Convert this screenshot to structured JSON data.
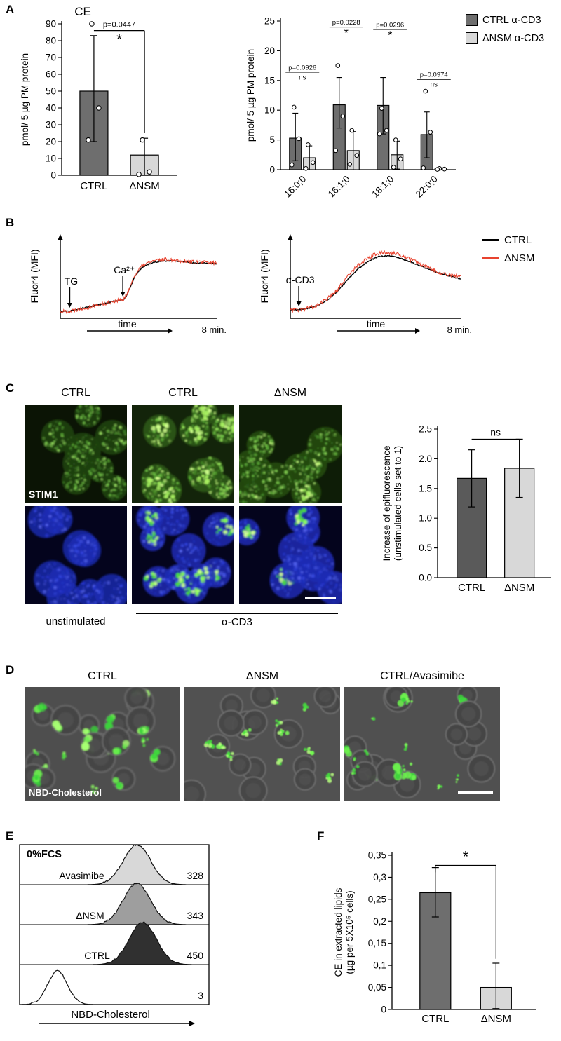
{
  "panels": {
    "A": {
      "label": "A"
    },
    "B": {
      "label": "B"
    },
    "C": {
      "label": "C",
      "col_headers": [
        "CTRL",
        "CTRL",
        "ΔNSM"
      ],
      "image_label": "STIM1",
      "group_labels": {
        "left": "unstimulated",
        "right": "α-CD3"
      }
    },
    "D": {
      "label": "D",
      "col_headers": [
        "CTRL",
        "ΔNSM",
        "CTRL/Avasimibe"
      ],
      "image_label": "NBD-Cholesterol"
    },
    "E": {
      "label": "E"
    },
    "F": {
      "label": "F"
    }
  },
  "legends": {
    "A": [
      {
        "label": "CTRL α-CD3",
        "color": "#6e6e6e"
      },
      {
        "label": "ΔNSM α-CD3",
        "color": "#d8d8d8"
      }
    ],
    "B": [
      {
        "label": "CTRL",
        "color": "#000000"
      },
      {
        "label": "ΔNSM",
        "color": "#e8432f"
      }
    ]
  },
  "chart_data": [
    {
      "id": "A_left",
      "type": "bar",
      "title": "CE",
      "ylabel": "pmol/ 5 µg PM protein",
      "ylim": [
        0,
        90
      ],
      "yticks": [
        0,
        10,
        20,
        30,
        40,
        50,
        60,
        70,
        80,
        90
      ],
      "categories": [
        "CTRL",
        "ΔNSM"
      ],
      "values": [
        50,
        12
      ],
      "errors_low": [
        30,
        12
      ],
      "errors_high": [
        33,
        10
      ],
      "points": [
        [
          90,
          40,
          21
        ],
        [
          21,
          2,
          0.5
        ]
      ],
      "bar_colors": [
        "#6e6e6e",
        "#d8d8d8"
      ],
      "sig": {
        "above": "p=0.0447",
        "below": "*",
        "y": 86,
        "dropTo": 25
      }
    },
    {
      "id": "A_right",
      "type": "grouped_bar",
      "ylabel": "pmol/ 5 µg PM protein",
      "ylim": [
        0,
        25
      ],
      "yticks": [
        0,
        5,
        10,
        15,
        20,
        25
      ],
      "categories": [
        "16:0;0",
        "16:1;0",
        "18:1;0",
        "22:0;0"
      ],
      "series": [
        {
          "name": "CTRL α-CD3",
          "color": "#6e6e6e",
          "values": [
            5.3,
            10.9,
            10.8,
            5.9
          ],
          "errors_low": [
            3.8,
            3.9,
            4.8,
            3.9
          ],
          "errors_high": [
            4.2,
            4.6,
            4.7,
            3.8
          ],
          "points": [
            [
              10.5,
              5.2,
              0.8
            ],
            [
              17.5,
              9.0,
              3.2
            ],
            [
              10.3,
              6.6,
              6.0
            ],
            [
              13.2,
              6.3,
              0.3
            ]
          ]
        },
        {
          "name": "ΔNSM α-CD3",
          "color": "#d8d8d8",
          "values": [
            2.0,
            3.2,
            2.5,
            0.15
          ],
          "errors_low": [
            2.0,
            3.2,
            2.4,
            0.15
          ],
          "errors_high": [
            2.0,
            3.2,
            2.3,
            0.15
          ],
          "points": [
            [
              4.2,
              1.2,
              0.2
            ],
            [
              6.6,
              2.4,
              0.9
            ],
            [
              5.0,
              1.8,
              0.4
            ],
            [
              0.2,
              0.1,
              0.05
            ]
          ]
        }
      ],
      "annotations": [
        {
          "group": 0,
          "p": "p=0.0926",
          "sig": "ns",
          "y": 16.8
        },
        {
          "group": 1,
          "p": "p=0.0228",
          "sig": "*",
          "y": 24.4
        },
        {
          "group": 2,
          "p": "p=0.0296",
          "sig": "*",
          "y": 24.0
        },
        {
          "group": 3,
          "p": "p=0.0974",
          "sig": "ns",
          "y": 15.6
        }
      ]
    },
    {
      "id": "B_left",
      "type": "line",
      "ylabel": "Fluor4 (MFI)",
      "xlabel": "time",
      "x_end_label": "8 min.",
      "events": [
        {
          "label": "TG",
          "x": 0.06
        },
        {
          "label": "Ca²⁺",
          "x": 0.4
        }
      ],
      "series": [
        {
          "name": "CTRL",
          "color": "#000000",
          "noise": 0.008,
          "points": [
            [
              0,
              0.04
            ],
            [
              0.06,
              0.04
            ],
            [
              0.09,
              0.06
            ],
            [
              0.18,
              0.1
            ],
            [
              0.28,
              0.15
            ],
            [
              0.36,
              0.19
            ],
            [
              0.4,
              0.2
            ],
            [
              0.42,
              0.24
            ],
            [
              0.45,
              0.4
            ],
            [
              0.48,
              0.55
            ],
            [
              0.52,
              0.66
            ],
            [
              0.57,
              0.72
            ],
            [
              0.63,
              0.75
            ],
            [
              0.7,
              0.76
            ],
            [
              0.78,
              0.75
            ],
            [
              0.86,
              0.73
            ],
            [
              1,
              0.72
            ]
          ]
        },
        {
          "name": "ΔNSM",
          "color": "#e8432f",
          "noise": 0.028,
          "points": [
            [
              0,
              0.04
            ],
            [
              0.06,
              0.04
            ],
            [
              0.09,
              0.06
            ],
            [
              0.18,
              0.1
            ],
            [
              0.28,
              0.15
            ],
            [
              0.36,
              0.19
            ],
            [
              0.4,
              0.2
            ],
            [
              0.42,
              0.25
            ],
            [
              0.45,
              0.42
            ],
            [
              0.48,
              0.57
            ],
            [
              0.52,
              0.68
            ],
            [
              0.57,
              0.74
            ],
            [
              0.63,
              0.77
            ],
            [
              0.7,
              0.78
            ],
            [
              0.78,
              0.76
            ],
            [
              0.86,
              0.74
            ],
            [
              1,
              0.73
            ]
          ]
        }
      ]
    },
    {
      "id": "B_right",
      "type": "line",
      "ylabel": "Fluor4 (MFI)",
      "xlabel": "time",
      "x_end_label": "8 min.",
      "events": [
        {
          "label": "α-CD3",
          "x": 0.05
        }
      ],
      "series": [
        {
          "name": "CTRL",
          "color": "#000000",
          "noise": 0.008,
          "points": [
            [
              0,
              0.06
            ],
            [
              0.05,
              0.06
            ],
            [
              0.1,
              0.08
            ],
            [
              0.16,
              0.12
            ],
            [
              0.22,
              0.2
            ],
            [
              0.28,
              0.33
            ],
            [
              0.34,
              0.5
            ],
            [
              0.4,
              0.65
            ],
            [
              0.46,
              0.76
            ],
            [
              0.52,
              0.82
            ],
            [
              0.58,
              0.83
            ],
            [
              0.64,
              0.8
            ],
            [
              0.72,
              0.73
            ],
            [
              0.8,
              0.65
            ],
            [
              0.88,
              0.58
            ],
            [
              1,
              0.5
            ]
          ]
        },
        {
          "name": "ΔNSM",
          "color": "#e8432f",
          "noise": 0.03,
          "points": [
            [
              0,
              0.06
            ],
            [
              0.05,
              0.06
            ],
            [
              0.1,
              0.08
            ],
            [
              0.16,
              0.13
            ],
            [
              0.22,
              0.22
            ],
            [
              0.28,
              0.36
            ],
            [
              0.34,
              0.54
            ],
            [
              0.4,
              0.7
            ],
            [
              0.46,
              0.81
            ],
            [
              0.52,
              0.87
            ],
            [
              0.58,
              0.88
            ],
            [
              0.64,
              0.84
            ],
            [
              0.72,
              0.76
            ],
            [
              0.8,
              0.67
            ],
            [
              0.88,
              0.59
            ],
            [
              1,
              0.52
            ]
          ]
        }
      ]
    },
    {
      "id": "C_bar",
      "type": "bar",
      "ylabel_lines": [
        "Increase of epifluorescence",
        "(unstimulated cells set to 1)"
      ],
      "ylim": [
        0,
        2.5
      ],
      "yticks": [
        0,
        0.5,
        1,
        1.5,
        2,
        2.5
      ],
      "ytick_labels": [
        "0.0",
        "0.5",
        "1.0",
        "1.5",
        "2.0",
        "2.5"
      ],
      "categories": [
        "CTRL",
        "ΔNSM"
      ],
      "values": [
        1.67,
        1.84
      ],
      "errors_low": [
        0.48,
        0.49
      ],
      "errors_high": [
        0.48,
        0.49
      ],
      "bar_colors": [
        "#5a5a5a",
        "#d8d8d8"
      ],
      "sig": {
        "above": "ns",
        "y": 2.33
      }
    },
    {
      "id": "E_hist",
      "type": "histogram_rows",
      "box_label": "0%FCS",
      "xlabel": "NBD-Cholesterol",
      "rows": [
        {
          "label": "Avasimibe",
          "value": "328",
          "fill": "#d8d8d8",
          "peak_x": 0.62,
          "peak_h": 1.0,
          "sigma": 0.072
        },
        {
          "label": "ΔNSM",
          "value": "343",
          "fill": "#9e9e9e",
          "peak_x": 0.62,
          "peak_h": 1.03,
          "sigma": 0.072
        },
        {
          "label": "CTRL",
          "value": "450",
          "fill": "#303030",
          "peak_x": 0.65,
          "peak_h": 1.06,
          "sigma": 0.072
        },
        {
          "label": "",
          "value": "3",
          "fill": "#ffffff",
          "peak_x": 0.2,
          "peak_h": 0.84,
          "sigma": 0.052
        }
      ]
    },
    {
      "id": "F_bar",
      "type": "bar",
      "ylabel_lines": [
        "CE in extracted lipids",
        "(µg per 5X10⁵ cells)"
      ],
      "ylim": [
        0,
        0.35
      ],
      "yticks": [
        0,
        0.05,
        0.1,
        0.15,
        0.2,
        0.25,
        0.3,
        0.35
      ],
      "ytick_labels": [
        "0",
        "0,05",
        "0,1",
        "0,15",
        "0,2",
        "0,25",
        "0,3",
        "0,35"
      ],
      "categories": [
        "CTRL",
        "ΔNSM"
      ],
      "values": [
        0.265,
        0.05
      ],
      "errors_low": [
        0.055,
        0.048
      ],
      "errors_high": [
        0.057,
        0.055
      ],
      "bar_colors": [
        "#6e6e6e",
        "#d8d8d8"
      ],
      "sig": {
        "above": "*",
        "y": 0.327,
        "dropTo": 0.115,
        "leftTick": 10
      }
    }
  ]
}
